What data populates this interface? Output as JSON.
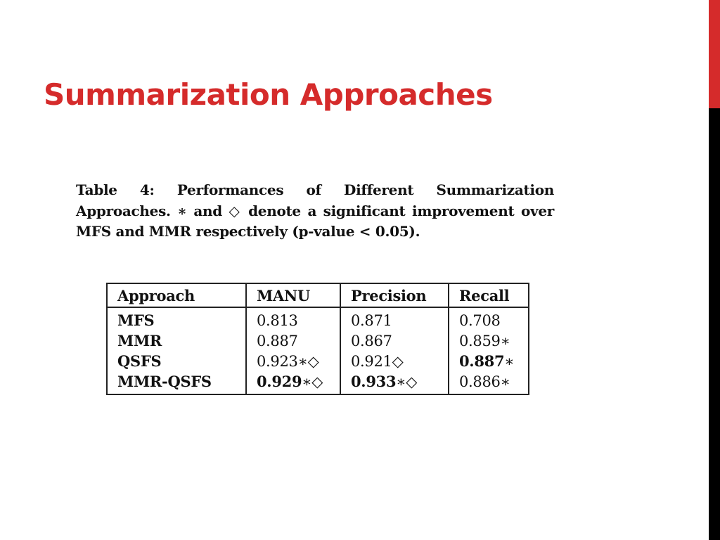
{
  "slide": {
    "title": "Summarization Approaches",
    "accent_color": "#d52b2b",
    "sidebar_color": "#000000"
  },
  "caption": {
    "text": "Table 4: Performances of Different Summarization Approaches. ∗ and ◇ denote a significant improvement over MFS and MMR respectively (p-value < 0.05)."
  },
  "table": {
    "headers": [
      "Approach",
      "MANU",
      "Precision",
      "Recall"
    ],
    "rows": [
      {
        "approach": "MFS",
        "manu": "0.813",
        "manu_mark": "",
        "precision": "0.871",
        "precision_mark": "",
        "recall": "0.708",
        "recall_mark": ""
      },
      {
        "approach": "MMR",
        "manu": "0.887",
        "manu_mark": "",
        "precision": "0.867",
        "precision_mark": "",
        "recall": "0.859",
        "recall_mark": "∗"
      },
      {
        "approach": "QSFS",
        "manu": "0.923",
        "manu_mark": "∗◇",
        "precision": "0.921",
        "precision_mark": "◇",
        "recall": "0.887",
        "recall_mark": "∗"
      },
      {
        "approach": "MMR-QSFS",
        "manu": "0.929",
        "manu_mark": "∗◇",
        "precision": "0.933",
        "precision_mark": "∗◇",
        "recall": "0.886",
        "recall_mark": "∗"
      }
    ]
  }
}
